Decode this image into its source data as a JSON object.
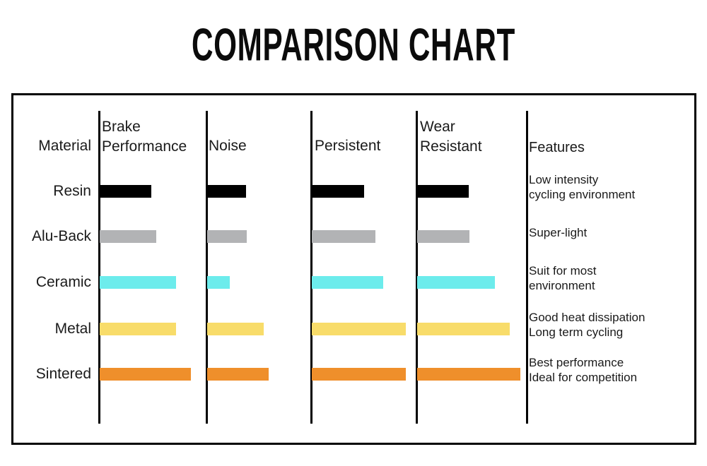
{
  "title": "COMPARISON CHART",
  "table": {
    "headers": {
      "material": "Material",
      "brake_performance": "Brake\nPerformance",
      "noise": "Noise",
      "persistent": "Persistent",
      "wear_resistant": "Wear\nResistant",
      "features": "Features"
    },
    "rows": [
      {
        "material": "Resin",
        "color": "#000000",
        "bars": {
          "brake_performance": 73,
          "noise": 55,
          "persistent": 74,
          "wear_resistant": 73
        },
        "features": "Low intensity\ncycling environment"
      },
      {
        "material": "Alu-Back",
        "color": "#B2B3B5",
        "bars": {
          "brake_performance": 80,
          "noise": 56,
          "persistent": 90,
          "wear_resistant": 74
        },
        "features": "Super-light"
      },
      {
        "material": "Ceramic",
        "color": "#6CECEC",
        "bars": {
          "brake_performance": 108,
          "noise": 32,
          "persistent": 101,
          "wear_resistant": 110
        },
        "features": "Suit for most\nenvironment"
      },
      {
        "material": "Metal",
        "color": "#F8DC6A",
        "bars": {
          "brake_performance": 108,
          "noise": 80,
          "persistent": 133,
          "wear_resistant": 131
        },
        "features": "Good heat dissipation\nLong term cycling"
      },
      {
        "material": "Sintered",
        "color": "#EF8F2B",
        "bars": {
          "brake_performance": 129,
          "noise": 87,
          "persistent": 133,
          "wear_resistant": 146
        },
        "features": "Best performance\nIdeal for competition"
      }
    ]
  },
  "chart_data": {
    "type": "bar",
    "orientation": "horizontal",
    "title": "COMPARISON CHART",
    "categories": [
      "Resin",
      "Alu-Back",
      "Ceramic",
      "Metal",
      "Sintered"
    ],
    "series": [
      {
        "name": "Brake Performance",
        "values": [
          73,
          80,
          108,
          108,
          129
        ]
      },
      {
        "name": "Noise",
        "values": [
          55,
          56,
          32,
          80,
          87
        ]
      },
      {
        "name": "Persistent",
        "values": [
          74,
          90,
          101,
          133,
          133
        ]
      },
      {
        "name": "Wear Resistant",
        "values": [
          73,
          74,
          110,
          131,
          146
        ]
      }
    ],
    "value_note": "no numeric axis shown; values are rendered bar lengths in px",
    "bar_colors": {
      "Resin": "#000000",
      "Alu-Back": "#B2B3B5",
      "Ceramic": "#6CECEC",
      "Metal": "#F8DC6A",
      "Sintered": "#EF8F2B"
    },
    "annotations": [
      "Low intensity cycling environment",
      "Super-light",
      "Suit for most environment",
      "Good heat dissipation Long term cycling",
      "Best performance Ideal for competition"
    ],
    "legend": false,
    "grid": false,
    "xlabel": "",
    "ylabel": ""
  }
}
